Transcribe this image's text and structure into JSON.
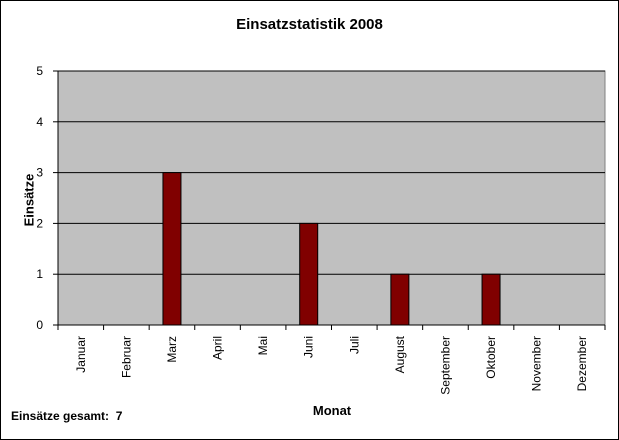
{
  "chart_data": {
    "type": "bar",
    "title": "Einsatzstatistik 2008",
    "xlabel": "Monat",
    "ylabel": "Einsätze",
    "categories": [
      "Januar",
      "Februar",
      "Marz",
      "April",
      "Mai",
      "Juni",
      "Juli",
      "August",
      "September",
      "Oktober",
      "November",
      "Dezember"
    ],
    "values": [
      0,
      0,
      3,
      0,
      0,
      2,
      0,
      1,
      0,
      1,
      0,
      0
    ],
    "ylim": [
      0,
      5
    ],
    "yticks": [
      "0",
      "1",
      "2",
      "3",
      "4",
      "5"
    ],
    "grid": true,
    "colors": {
      "bar": "#800000",
      "plot_bg": "#c0c0c0"
    }
  },
  "footer": {
    "label": "Einsätze gesamt:",
    "value": "7"
  }
}
